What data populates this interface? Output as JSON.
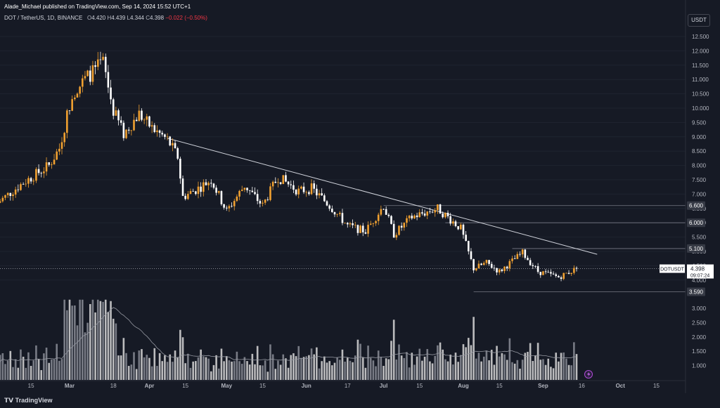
{
  "header": {
    "published": "Alade_Michael published on TradingView.com, Sep 14, 2024 15:52 UTC+1"
  },
  "legend": {
    "symbol": "DOT / TetherUS, 1D, BINANCE",
    "o_label": "O",
    "o": "4.420",
    "h_label": "H",
    "h": "4.439",
    "l_label": "L",
    "l": "4.344",
    "c_label": "C",
    "c": "4.398",
    "change": "−0.022 (−0.50%)"
  },
  "currency": "USDT",
  "footer": {
    "logo": "TradingView"
  },
  "colors": {
    "background": "#161a25",
    "up_candle": "#f0a030",
    "down_candle": "#ffffff",
    "volume_up": "#8a8d96",
    "volume_down": "#d9d9d9",
    "trendline": "#d1d4dc",
    "level_line": "#787b86",
    "price_line": "#9598a1"
  },
  "chart_data": {
    "type": "candlestick",
    "symbol": "DOTUSDT",
    "interval": "1D",
    "x_axis": {
      "tick_labels": [
        "15",
        "Mar",
        "18",
        "Apr",
        "15",
        "May",
        "15",
        "Jun",
        "17",
        "Jul",
        "15",
        "Aug",
        "15",
        "Sep",
        "16",
        "Oct",
        "15"
      ]
    },
    "price_axis": {
      "tick_labels": [
        "12.500",
        "12.000",
        "11.500",
        "11.000",
        "10.500",
        "10.000",
        "9.500",
        "9.000",
        "8.500",
        "8.000",
        "7.500",
        "7.000",
        "6.500",
        "6.000",
        "5.500",
        "5.000",
        "4.500",
        "4.000"
      ],
      "range": [
        3.45,
        12.8
      ]
    },
    "volume_axis": {
      "tick_labels": [
        "3.000",
        "2.500",
        "2.000",
        "1.500",
        "1.000"
      ]
    },
    "levels": [
      {
        "label": "6.600",
        "value": 6.6
      },
      {
        "label": "6.000",
        "value": 6.0
      },
      {
        "label": "5.100",
        "value": 5.1
      },
      {
        "label": "3.590",
        "value": 3.59
      }
    ],
    "current_price": {
      "symbol_label": "DOTUSDT",
      "price": "4.398",
      "countdown": "09:07:24",
      "value": 4.398
    },
    "trendline": {
      "from": {
        "date": "2024-04-08",
        "price": 8.95
      },
      "to": {
        "date": "2024-09-22",
        "price": 4.9
      }
    },
    "series_range": {
      "start": "2024-02-02",
      "end": "2024-09-14"
    },
    "close_path": [
      [
        "2024-02-02",
        6.7
      ],
      [
        "2024-02-12",
        7.4
      ],
      [
        "2024-02-22",
        8.0
      ],
      [
        "2024-02-26",
        8.6
      ],
      [
        "2024-03-02",
        10.5
      ],
      [
        "2024-03-08",
        11.1
      ],
      [
        "2024-03-14",
        11.6
      ],
      [
        "2024-03-18",
        9.9
      ],
      [
        "2024-03-22",
        9.1
      ],
      [
        "2024-03-28",
        9.8
      ],
      [
        "2024-04-02",
        9.3
      ],
      [
        "2024-04-08",
        8.9
      ],
      [
        "2024-04-12",
        8.3
      ],
      [
        "2024-04-14",
        6.9
      ],
      [
        "2024-04-20",
        7.2
      ],
      [
        "2024-04-25",
        7.5
      ],
      [
        "2024-05-01",
        6.4
      ],
      [
        "2024-05-08",
        7.3
      ],
      [
        "2024-05-15",
        6.6
      ],
      [
        "2024-05-21",
        7.6
      ],
      [
        "2024-05-29",
        7.1
      ],
      [
        "2024-06-03",
        7.2
      ],
      [
        "2024-06-10",
        6.6
      ],
      [
        "2024-06-17",
        5.9
      ],
      [
        "2024-06-24",
        5.7
      ],
      [
        "2024-07-01",
        6.6
      ],
      [
        "2024-07-05",
        5.6
      ],
      [
        "2024-07-12",
        6.2
      ],
      [
        "2024-07-22",
        6.5
      ],
      [
        "2024-07-31",
        5.8
      ],
      [
        "2024-08-05",
        4.4
      ],
      [
        "2024-08-10",
        4.6
      ],
      [
        "2024-08-15",
        4.3
      ],
      [
        "2024-08-24",
        4.95
      ],
      [
        "2024-08-30",
        4.3
      ],
      [
        "2024-09-07",
        4.1
      ],
      [
        "2024-09-14",
        4.398
      ]
    ]
  }
}
